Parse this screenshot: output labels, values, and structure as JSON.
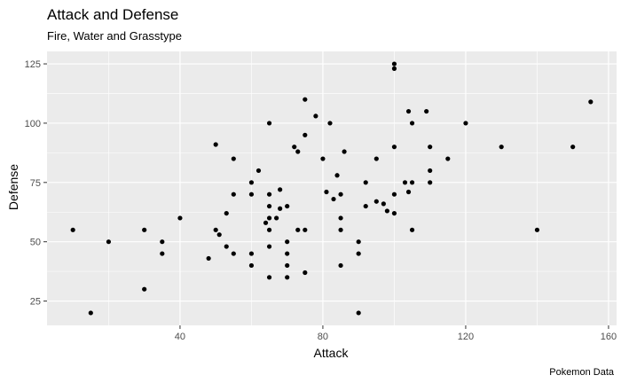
{
  "chart_data": {
    "type": "scatter",
    "title": "Attack and Defense",
    "subtitle": "Fire, Water and Grasstype",
    "xlabel": "Attack",
    "ylabel": "Defense",
    "caption": "Pokemon Data",
    "xlim": [
      2.75,
      162.25
    ],
    "ylim": [
      14.75,
      130.25
    ],
    "x_ticks": [
      40,
      80,
      120,
      160
    ],
    "y_ticks": [
      25,
      50,
      75,
      100,
      125
    ],
    "grid": true,
    "panel_color": "#ebebeb",
    "grid_color": "#ffffff",
    "point_color": "#000000",
    "points": [
      [
        10,
        55
      ],
      [
        15,
        20
      ],
      [
        20,
        50
      ],
      [
        30,
        55
      ],
      [
        30,
        30
      ],
      [
        35,
        50
      ],
      [
        35,
        45
      ],
      [
        40,
        60
      ],
      [
        48,
        43
      ],
      [
        50,
        91
      ],
      [
        50,
        55
      ],
      [
        51,
        53
      ],
      [
        53,
        62
      ],
      [
        53,
        48
      ],
      [
        55,
        85
      ],
      [
        55,
        70
      ],
      [
        55,
        45
      ],
      [
        60,
        75
      ],
      [
        60,
        70
      ],
      [
        60,
        45
      ],
      [
        60,
        40
      ],
      [
        62,
        80
      ],
      [
        64,
        58
      ],
      [
        65,
        100
      ],
      [
        65,
        70
      ],
      [
        65,
        65
      ],
      [
        65,
        60
      ],
      [
        65,
        55
      ],
      [
        65,
        48
      ],
      [
        65,
        35
      ],
      [
        67,
        60
      ],
      [
        68,
        72
      ],
      [
        68,
        64
      ],
      [
        70,
        65
      ],
      [
        70,
        50
      ],
      [
        70,
        45
      ],
      [
        70,
        40
      ],
      [
        70,
        35
      ],
      [
        72,
        90
      ],
      [
        73,
        88
      ],
      [
        73,
        55
      ],
      [
        75,
        110
      ],
      [
        75,
        95
      ],
      [
        75,
        55
      ],
      [
        75,
        37
      ],
      [
        78,
        103
      ],
      [
        80,
        85
      ],
      [
        81,
        71
      ],
      [
        82,
        100
      ],
      [
        83,
        68
      ],
      [
        84,
        78
      ],
      [
        85,
        70
      ],
      [
        85,
        60
      ],
      [
        85,
        55
      ],
      [
        85,
        40
      ],
      [
        86,
        88
      ],
      [
        90,
        50
      ],
      [
        90,
        45
      ],
      [
        90,
        20
      ],
      [
        92,
        75
      ],
      [
        92,
        65
      ],
      [
        95,
        85
      ],
      [
        95,
        67
      ],
      [
        97,
        66
      ],
      [
        98,
        63
      ],
      [
        100,
        125
      ],
      [
        100,
        123
      ],
      [
        100,
        90
      ],
      [
        100,
        70
      ],
      [
        100,
        62
      ],
      [
        103,
        75
      ],
      [
        104,
        105
      ],
      [
        104,
        71
      ],
      [
        105,
        100
      ],
      [
        105,
        75
      ],
      [
        105,
        55
      ],
      [
        109,
        105
      ],
      [
        110,
        90
      ],
      [
        110,
        80
      ],
      [
        110,
        75
      ],
      [
        115,
        85
      ],
      [
        120,
        100
      ],
      [
        130,
        90
      ],
      [
        140,
        55
      ],
      [
        150,
        90
      ],
      [
        155,
        109
      ]
    ]
  }
}
